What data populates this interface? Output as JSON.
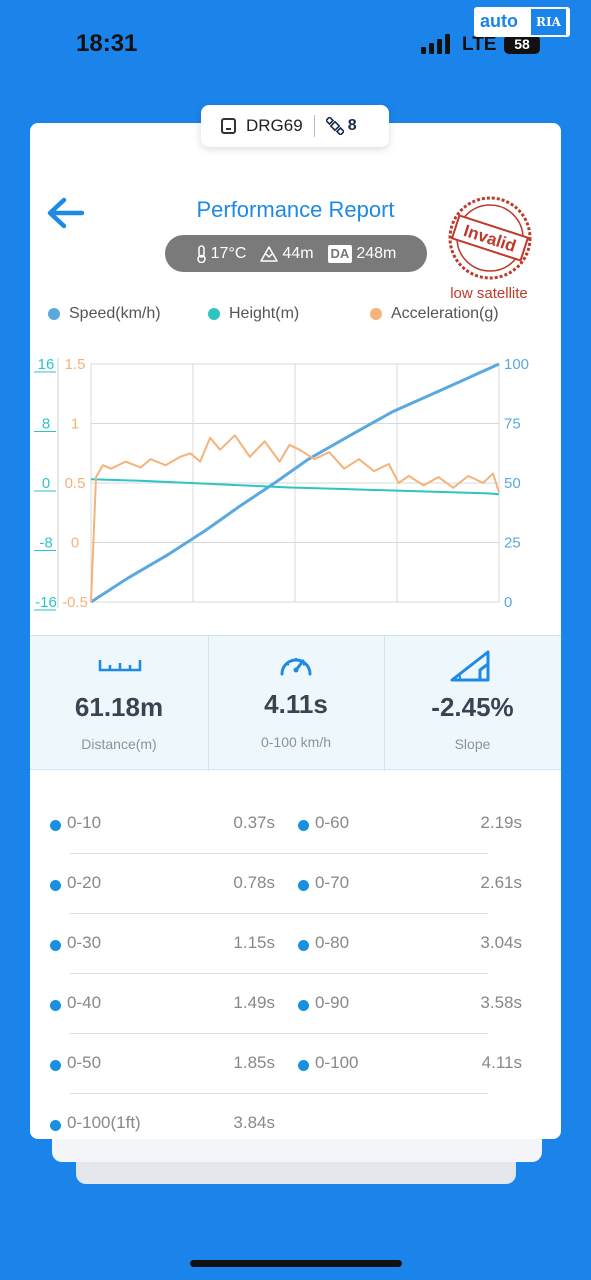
{
  "status_bar": {
    "time": "18:31",
    "network": "LTE",
    "battery": "58"
  },
  "watermark": {
    "left": "auto",
    "right": "RIA"
  },
  "device": {
    "name": "DRG69",
    "satellites": "8"
  },
  "header": {
    "title": "Performance Report",
    "stamp_text": "Invalid",
    "stamp_note": "low satellite"
  },
  "conditions": {
    "temperature": "17°C",
    "altitude": "44m",
    "density_altitude_badge": "DA",
    "density_altitude": "248m"
  },
  "legend": [
    {
      "label": "Speed(km/h)",
      "color": "#5aa8e0"
    },
    {
      "label": "Height(m)",
      "color": "#2ec4c4"
    },
    {
      "label": "Acceleration(g)",
      "color": "#f5b27a"
    }
  ],
  "chart_data": {
    "type": "line",
    "axes": {
      "height_ticks": [
        "16",
        "8",
        "0",
        "-8",
        "-16"
      ],
      "accel_ticks": [
        "1.5",
        "1",
        "0.5",
        "0",
        "-0.5"
      ],
      "speed_ticks": [
        "100",
        "75",
        "50",
        "25",
        "0"
      ],
      "height_range": [
        -16,
        16
      ],
      "accel_range": [
        -0.5,
        1.5
      ],
      "speed_range": [
        0,
        100
      ],
      "x_range": [
        0,
        4.11
      ],
      "grid": true
    },
    "series": [
      {
        "name": "Speed(km/h)",
        "color": "#5aa8e0",
        "axis": "speed",
        "x": [
          0,
          0.37,
          0.78,
          1.15,
          1.49,
          1.85,
          2.19,
          2.61,
          3.04,
          3.58,
          4.11
        ],
        "y": [
          0,
          10,
          20,
          30,
          40,
          50,
          60,
          70,
          80,
          90,
          100
        ]
      },
      {
        "name": "Height(m)",
        "color": "#2ec4c4",
        "axis": "height",
        "x": [
          0,
          0.5,
          1.0,
          1.5,
          2.0,
          2.5,
          3.0,
          3.5,
          4.0,
          4.11
        ],
        "y": [
          0.5,
          0.3,
          0.0,
          -0.3,
          -0.6,
          -0.8,
          -1.0,
          -1.2,
          -1.4,
          -1.5
        ]
      },
      {
        "name": "Acceleration(g)",
        "color": "#f5b27a",
        "axis": "accel",
        "x": [
          0,
          0.05,
          0.12,
          0.2,
          0.35,
          0.5,
          0.6,
          0.75,
          0.9,
          1.0,
          1.1,
          1.2,
          1.3,
          1.45,
          1.6,
          1.75,
          1.9,
          2.0,
          2.1,
          2.25,
          2.4,
          2.55,
          2.7,
          2.85,
          3.0,
          3.1,
          3.2,
          3.35,
          3.5,
          3.65,
          3.8,
          3.95,
          4.05,
          4.11
        ],
        "y": [
          -0.5,
          0.55,
          0.65,
          0.62,
          0.68,
          0.63,
          0.7,
          0.65,
          0.72,
          0.75,
          0.68,
          0.88,
          0.78,
          0.9,
          0.72,
          0.85,
          0.68,
          0.82,
          0.78,
          0.7,
          0.76,
          0.62,
          0.7,
          0.6,
          0.66,
          0.5,
          0.56,
          0.48,
          0.55,
          0.46,
          0.56,
          0.5,
          0.58,
          0.42
        ]
      }
    ]
  },
  "stats": [
    {
      "value": "61.18m",
      "label": "Distance(m)"
    },
    {
      "value": "4.11s",
      "label": "0-100 km/h"
    },
    {
      "value": "-2.45%",
      "label": "Slope"
    }
  ],
  "splits": [
    {
      "label": "0-10",
      "time": "0.37s"
    },
    {
      "label": "0-20",
      "time": "0.78s"
    },
    {
      "label": "0-30",
      "time": "1.15s"
    },
    {
      "label": "0-40",
      "time": "1.49s"
    },
    {
      "label": "0-50",
      "time": "1.85s"
    },
    {
      "label": "0-100(1ft)",
      "time": "3.84s"
    },
    {
      "label": "0-60",
      "time": "2.19s"
    },
    {
      "label": "0-70",
      "time": "2.61s"
    },
    {
      "label": "0-80",
      "time": "3.04s"
    },
    {
      "label": "0-90",
      "time": "3.58s"
    },
    {
      "label": "0-100",
      "time": "4.11s"
    }
  ]
}
